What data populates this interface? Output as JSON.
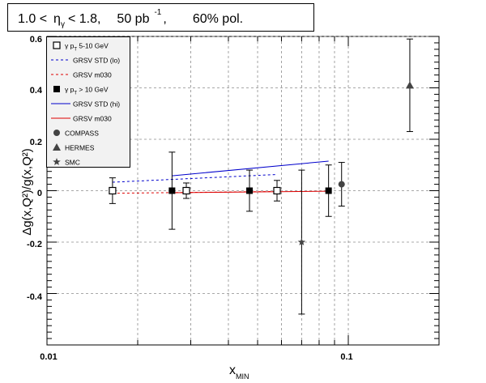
{
  "header": {
    "range_prefix": "1.0 <",
    "eta_symbol": "η",
    "eta_sub": "γ",
    "range_suffix": "< 1.8,",
    "lumi_value": "50 pb",
    "lumi_exp": "-1",
    "lumi_comma": ",",
    "polarization": "60% pol."
  },
  "legend": [
    {
      "marker": "open-square",
      "color": "#000000",
      "label_prefix": "γ p",
      "label_sub": "T",
      "label_suffix": " 5-10 GeV"
    },
    {
      "marker": "dashed-line",
      "color": "#0000cc",
      "label": "GRSV STD (lo)"
    },
    {
      "marker": "dashed-line",
      "color": "#dd0000",
      "label": "GRSV m030"
    },
    {
      "marker": "filled-square",
      "color": "#000000",
      "label_prefix": "γ p",
      "label_sub": "T",
      "label_suffix": " > 10 GeV"
    },
    {
      "marker": "solid-line",
      "color": "#0000cc",
      "label": "GRSV STD (hi)"
    },
    {
      "marker": "solid-line",
      "color": "#dd0000",
      "label": "GRSV m030"
    },
    {
      "marker": "filled-circle",
      "color": "#444444",
      "label": "COMPASS"
    },
    {
      "marker": "filled-triangle",
      "color": "#444444",
      "label": "HERMES"
    },
    {
      "marker": "star",
      "color": "#444444",
      "label": "SMC"
    }
  ],
  "chart_data": {
    "type": "scatter",
    "xscale": "log",
    "xlim": [
      0.01,
      0.2
    ],
    "ylim": [
      -0.6,
      0.6
    ],
    "xlabel": "x",
    "xlabel_sub": "MIN",
    "ylabel": "Δg(x,Q²)/g(x,Q²)",
    "x_tick_labels": [
      {
        "x": 0.01,
        "label": "0.01"
      },
      {
        "x": 0.1,
        "label": "0.1"
      }
    ],
    "y_tick_labels": [
      {
        "y": -0.4,
        "label": "-0.4"
      },
      {
        "y": -0.2,
        "label": "-0.2"
      },
      {
        "y": 0,
        "label": "0"
      },
      {
        "y": 0.2,
        "label": "0.2"
      },
      {
        "y": 0.4,
        "label": "0.4"
      },
      {
        "y": 0.6,
        "label": "0.6"
      }
    ],
    "grid": true,
    "legend_position": "top-left",
    "series": [
      {
        "marker": "open-square",
        "color": "#000000",
        "points": [
          {
            "x": 0.0165,
            "y": 0.0,
            "err": 0.05
          },
          {
            "x": 0.029,
            "y": 0.0,
            "err": 0.03
          },
          {
            "x": 0.058,
            "y": 0.0,
            "err": 0.04
          }
        ]
      },
      {
        "marker": "filled-square",
        "color": "#000000",
        "points": [
          {
            "x": 0.026,
            "y": 0.0,
            "err": 0.15
          },
          {
            "x": 0.047,
            "y": 0.0,
            "err": 0.08
          },
          {
            "x": 0.086,
            "y": 0.0,
            "err": 0.1
          }
        ]
      },
      {
        "marker": "filled-circle",
        "color": "#444444",
        "points": [
          {
            "x": 0.095,
            "y": 0.025,
            "err": 0.085
          }
        ]
      },
      {
        "marker": "filled-triangle",
        "color": "#444444",
        "points": [
          {
            "x": 0.16,
            "y": 0.41,
            "err": 0.18
          }
        ]
      },
      {
        "marker": "star",
        "color": "#444444",
        "points": [
          {
            "x": 0.07,
            "y": -0.2,
            "err": 0.28
          }
        ]
      }
    ],
    "curves": [
      {
        "style": "dashed",
        "color": "#0000cc",
        "points": [
          [
            0.0165,
            0.033
          ],
          [
            0.058,
            0.063
          ]
        ]
      },
      {
        "style": "dashed",
        "color": "#dd0000",
        "points": [
          [
            0.0165,
            -0.01
          ],
          [
            0.058,
            -0.003
          ]
        ]
      },
      {
        "style": "solid",
        "color": "#0000cc",
        "points": [
          [
            0.026,
            0.058
          ],
          [
            0.086,
            0.115
          ]
        ]
      },
      {
        "style": "solid",
        "color": "#dd0000",
        "points": [
          [
            0.026,
            -0.008
          ],
          [
            0.086,
            -0.002
          ]
        ]
      }
    ]
  }
}
